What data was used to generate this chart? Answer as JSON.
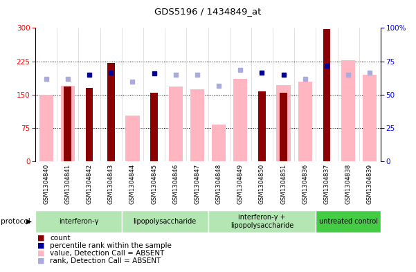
{
  "title": "GDS5196 / 1434849_at",
  "samples": [
    "GSM1304840",
    "GSM1304841",
    "GSM1304842",
    "GSM1304843",
    "GSM1304844",
    "GSM1304845",
    "GSM1304846",
    "GSM1304847",
    "GSM1304848",
    "GSM1304849",
    "GSM1304850",
    "GSM1304851",
    "GSM1304836",
    "GSM1304837",
    "GSM1304838",
    "GSM1304839"
  ],
  "count_values": [
    null,
    168,
    165,
    222,
    null,
    154,
    null,
    null,
    null,
    null,
    158,
    155,
    null,
    298,
    null,
    null
  ],
  "pink_values": [
    150,
    170,
    null,
    null,
    103,
    null,
    168,
    162,
    82,
    185,
    null,
    172,
    180,
    null,
    228,
    195
  ],
  "blue_dark_rank": [
    null,
    null,
    195,
    200,
    null,
    198,
    null,
    null,
    null,
    null,
    200,
    195,
    null,
    215,
    null,
    null
  ],
  "light_blue_rank": [
    185,
    185,
    null,
    null,
    180,
    null,
    195,
    195,
    170,
    205,
    null,
    null,
    185,
    null,
    195,
    200
  ],
  "groups": [
    {
      "label": "interferon-γ",
      "start": 0,
      "end": 4
    },
    {
      "label": "lipopolysaccharide",
      "start": 4,
      "end": 8
    },
    {
      "label": "interferon-γ +\nlipopolysaccharide",
      "start": 8,
      "end": 13
    },
    {
      "label": "untreated control",
      "start": 13,
      "end": 16
    }
  ],
  "group_colors": [
    "#b3e6b3",
    "#b3e6b3",
    "#b3e6b3",
    "#44cc44"
  ],
  "ylim_left": [
    0,
    300
  ],
  "ylim_right": [
    0,
    100
  ],
  "yticks_left": [
    0,
    75,
    150,
    225,
    300
  ],
  "yticks_right": [
    0,
    25,
    50,
    75,
    100
  ],
  "bar_color_red": "#8B0000",
  "bar_color_pink": "#FFB6C1",
  "dot_color_dark_blue": "#000099",
  "dot_color_light_blue": "#aaaadd",
  "grid_linestyle": ":",
  "bg_xtick": "#d8d8d8",
  "bg_white": "white"
}
